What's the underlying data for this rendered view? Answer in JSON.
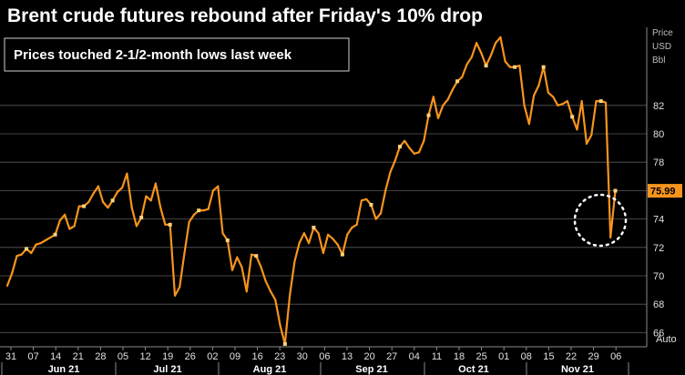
{
  "chart_data": {
    "type": "line",
    "title": "Brent crude futures rebound after Friday's 10% drop",
    "subtitle": "Prices touched 2-1/2-month lows last week",
    "y_axis_header": [
      "Price",
      "USD",
      "Bbl"
    ],
    "ylim": [
      65,
      87.5
    ],
    "y_ticks": [
      66,
      68,
      70,
      72,
      74,
      76,
      78,
      80,
      82
    ],
    "y_tick_labels": [
      "66",
      "68",
      "70",
      "72",
      "74",
      "",
      "78",
      "80",
      "82"
    ],
    "last_value_label": "75.99",
    "x_tick_labels": [
      "31",
      "07",
      "14",
      "21",
      "28",
      "05",
      "12",
      "19",
      "26",
      "02",
      "09",
      "16",
      "23",
      "30",
      "06",
      "13",
      "20",
      "27",
      "04",
      "11",
      "18",
      "25",
      "01",
      "08",
      "15",
      "22",
      "29",
      "06"
    ],
    "month_labels": [
      "Jun 21",
      "Jul 21",
      "Aug 21",
      "Sep 21",
      "Oct 21",
      "Nov 21"
    ],
    "auto_label": "Auto",
    "colors": {
      "line": "#f7941d",
      "marker": "#ffd27a",
      "background": "#000000",
      "grid": "#595959",
      "highlight_circle": "#ffffff",
      "last_value_box": "#f7941d"
    },
    "series": [
      {
        "values": [
          69.3,
          70.2,
          71.4,
          71.5,
          71.9,
          71.6,
          72.2,
          72.3,
          72.5,
          72.7,
          72.9,
          73.9,
          74.3,
          73.3,
          73.5,
          74.9,
          74.9,
          75.2,
          75.8,
          76.3,
          75.2,
          74.8,
          75.3,
          75.9,
          76.2,
          77.2,
          74.8,
          73.5,
          74.1,
          75.6,
          75.3,
          76.5,
          74.8,
          73.6,
          73.6,
          68.6,
          69.2,
          71.6,
          73.8,
          74.3,
          74.6,
          74.6,
          74.7,
          76.0,
          76.3,
          73.0,
          72.5,
          70.4,
          71.3,
          70.6,
          68.9,
          71.5,
          71.4,
          70.6,
          69.6,
          68.9,
          68.3,
          66.5,
          65.2,
          68.6,
          71.0,
          72.3,
          73.0,
          72.3,
          73.4,
          73.0,
          71.6,
          72.9,
          72.6,
          72.2,
          71.5,
          72.9,
          73.4,
          73.6,
          75.3,
          75.4,
          75.0,
          74.0,
          74.4,
          76.0,
          77.3,
          78.1,
          79.1,
          79.5,
          79.0,
          78.6,
          78.7,
          79.5,
          81.3,
          82.6,
          81.1,
          82.0,
          82.4,
          83.1,
          83.7,
          84.0,
          84.9,
          85.4,
          86.4,
          85.7,
          84.8,
          85.5,
          86.4,
          86.8,
          85.1,
          84.7,
          84.7,
          84.8,
          82.0,
          80.7,
          82.7,
          83.4,
          84.7,
          82.9,
          82.6,
          82.0,
          82.1,
          82.3,
          81.2,
          80.3,
          82.3,
          79.3,
          79.9,
          82.3,
          82.3,
          82.2,
          72.7,
          75.99
        ]
      }
    ]
  }
}
